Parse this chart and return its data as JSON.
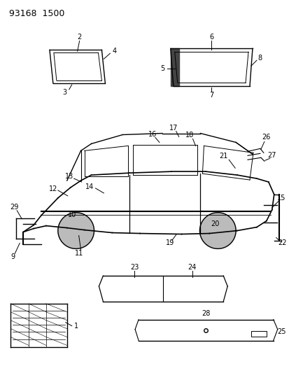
{
  "title": "93168  1500",
  "background_color": "#ffffff",
  "line_color": "#000000",
  "fig_width": 4.14,
  "fig_height": 5.33,
  "dpi": 100
}
